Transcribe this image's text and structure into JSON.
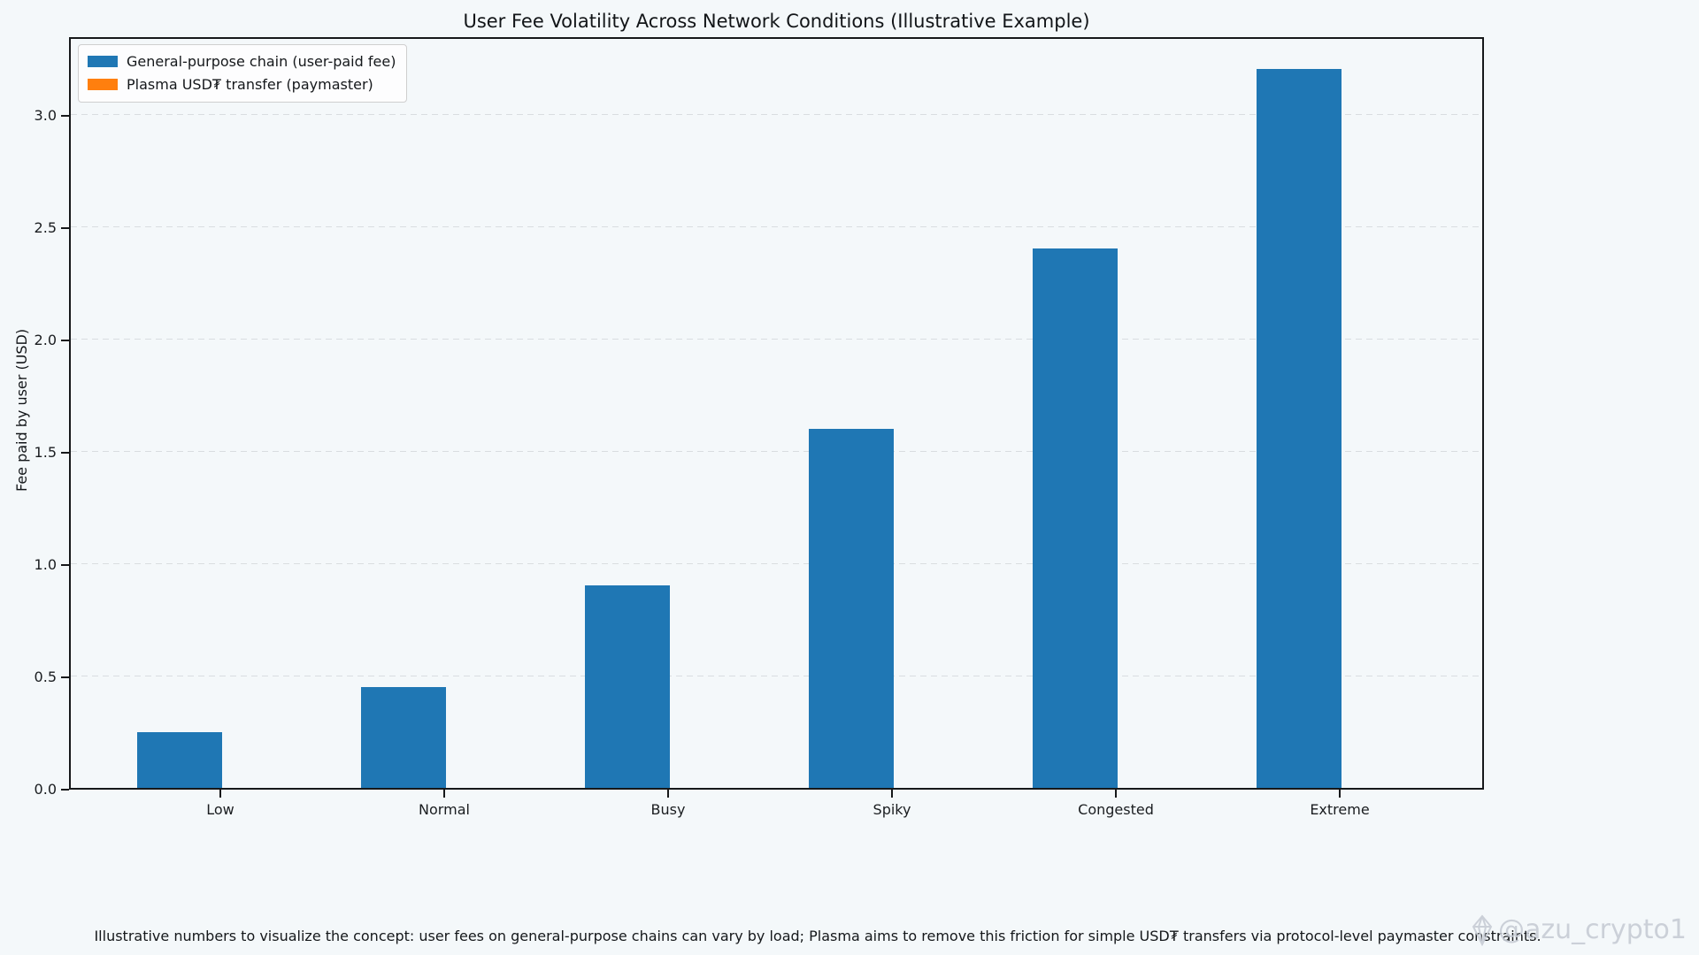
{
  "chart_data": {
    "type": "bar",
    "title": "User Fee Volatility Across Network Conditions (Illustrative Example)",
    "categories": [
      "Low",
      "Normal",
      "Busy",
      "Spiky",
      "Congested",
      "Extreme"
    ],
    "series": [
      {
        "name": "General-purpose chain (user-paid fee)",
        "color": "#1f77b4",
        "values": [
          0.25,
          0.45,
          0.9,
          1.6,
          2.4,
          3.2
        ]
      },
      {
        "name": "Plasma USD₮ transfer (paymaster)",
        "color": "#ff7f0e",
        "values": [
          0,
          0,
          0,
          0,
          0,
          0
        ]
      }
    ],
    "xlabel": "",
    "ylabel": "Fee paid by user (USD)",
    "ylim": [
      0,
      3.35
    ],
    "ytick_labels": [
      "0.0",
      "0.5",
      "1.0",
      "1.5",
      "2.0",
      "2.5",
      "3.0"
    ],
    "grid": "horizontal dashed",
    "legend_position": "upper left"
  },
  "caption": "Illustrative numbers to visualize the concept: user fees on general-purpose chains can vary by load; Plasma aims to remove this friction for simple USD₮ transfers via protocol-level paymaster constraints.",
  "watermark": {
    "icon": "gem-icon",
    "handle": "@azu_crypto1"
  },
  "colors": {
    "background": "#f4f8fa",
    "bar_blue": "#1f77b4",
    "bar_orange": "#ff7f0e",
    "grid": "#d9dde0",
    "spine": "#16181a",
    "watermark": "#c7ccd5"
  }
}
